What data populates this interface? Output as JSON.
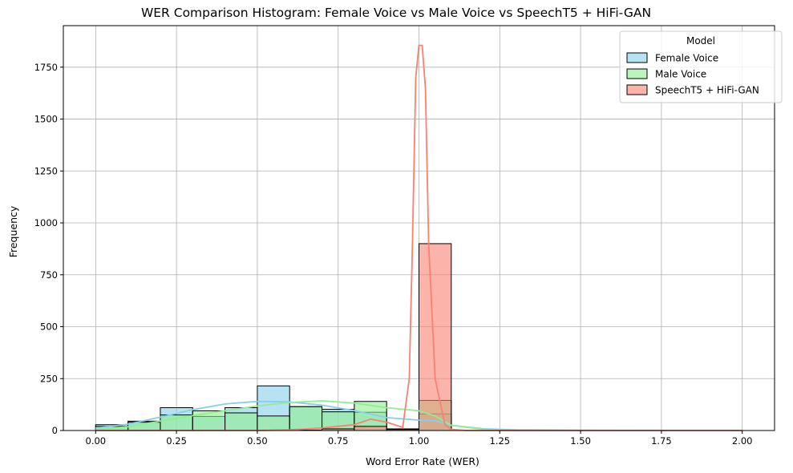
{
  "chart_data": {
    "type": "histogram",
    "title": "WER Comparison Histogram: Female Voice vs Male Voice vs SpeechT5 + HiFi-GAN",
    "xlabel": "Word Error Rate (WER)",
    "ylabel": "Frequency",
    "xlim": [
      -0.1,
      2.1
    ],
    "ylim": [
      0,
      1950
    ],
    "xticks": [
      0.0,
      0.25,
      0.5,
      0.75,
      1.0,
      1.25,
      1.5,
      1.75,
      2.0
    ],
    "xtick_labels": [
      "0.00",
      "0.25",
      "0.50",
      "0.75",
      "1.00",
      "1.25",
      "1.50",
      "1.75",
      "2.00"
    ],
    "yticks": [
      0,
      250,
      500,
      750,
      1000,
      1250,
      1500,
      1750
    ],
    "ytick_labels": [
      "0",
      "250",
      "500",
      "750",
      "1000",
      "1250",
      "1500",
      "1750"
    ],
    "grid": true,
    "legend": {
      "title": "Model",
      "position": "top-right"
    },
    "bin_edges": [
      0.0,
      0.1,
      0.2,
      0.3,
      0.4,
      0.5,
      0.6,
      0.7,
      0.8,
      0.9,
      1.0,
      1.1
    ],
    "series": [
      {
        "name": "Female Voice",
        "color": "#87ceeb",
        "counts": [
          28,
          45,
          110,
          68,
          110,
          215,
          115,
          102,
          88,
          8,
          80
        ],
        "kde": [
          [
            0.0,
            12
          ],
          [
            0.1,
            30
          ],
          [
            0.2,
            65
          ],
          [
            0.3,
            100
          ],
          [
            0.4,
            128
          ],
          [
            0.5,
            140
          ],
          [
            0.6,
            138
          ],
          [
            0.7,
            122
          ],
          [
            0.8,
            96
          ],
          [
            0.9,
            62
          ],
          [
            1.0,
            50
          ],
          [
            1.05,
            48
          ],
          [
            1.1,
            25
          ],
          [
            1.2,
            8
          ],
          [
            1.3,
            3
          ],
          [
            1.5,
            1
          ],
          [
            2.0,
            0
          ]
        ]
      },
      {
        "name": "Male Voice",
        "color": "#90ee90",
        "counts": [
          20,
          40,
          75,
          95,
          85,
          70,
          115,
          90,
          140,
          5,
          145
        ],
        "kde": [
          [
            0.0,
            5
          ],
          [
            0.1,
            18
          ],
          [
            0.2,
            45
          ],
          [
            0.3,
            72
          ],
          [
            0.4,
            95
          ],
          [
            0.5,
            118
          ],
          [
            0.6,
            135
          ],
          [
            0.7,
            143
          ],
          [
            0.8,
            132
          ],
          [
            0.9,
            110
          ],
          [
            1.0,
            95
          ],
          [
            1.05,
            70
          ],
          [
            1.1,
            25
          ],
          [
            1.2,
            5
          ],
          [
            1.3,
            0
          ],
          [
            2.0,
            0
          ]
        ]
      },
      {
        "name": "SpeechT5 + HiFi-GAN",
        "color": "#fa8072",
        "counts": [
          0,
          0,
          0,
          0,
          0,
          0,
          2,
          8,
          20,
          5,
          900
        ],
        "kde": [
          [
            0.0,
            0
          ],
          [
            0.5,
            0
          ],
          [
            0.6,
            3
          ],
          [
            0.7,
            12
          ],
          [
            0.75,
            20
          ],
          [
            0.8,
            28
          ],
          [
            0.85,
            55
          ],
          [
            0.9,
            40
          ],
          [
            0.95,
            15
          ],
          [
            0.97,
            250
          ],
          [
            0.98,
            900
          ],
          [
            0.99,
            1700
          ],
          [
            1.0,
            1855
          ],
          [
            1.01,
            1855
          ],
          [
            1.02,
            1650
          ],
          [
            1.03,
            900
          ],
          [
            1.05,
            250
          ],
          [
            1.08,
            30
          ],
          [
            1.1,
            5
          ],
          [
            1.15,
            0
          ],
          [
            2.0,
            0
          ]
        ]
      }
    ]
  }
}
